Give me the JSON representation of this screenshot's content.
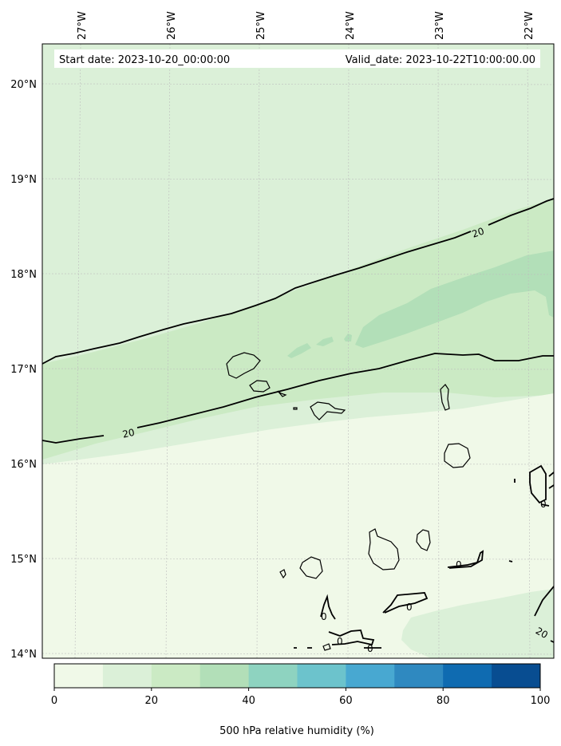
{
  "header": {
    "start_label": "Start date: 2023-10-20_00:00:00",
    "valid_label": "Valid_date: 2023-10-22T10:00:00.00"
  },
  "lon_ticks": [
    "27°W",
    "26°W",
    "25°W",
    "24°W",
    "23°W",
    "22°W"
  ],
  "lat_ticks": [
    "20°N",
    "19°N",
    "18°N",
    "17°N",
    "16°N",
    "15°N",
    "14°N"
  ],
  "contour_labels": [
    "20",
    "20",
    "20",
    "0",
    "0",
    "0",
    "0",
    "0",
    "0"
  ],
  "colorbar": {
    "label": "500 hPa relative humidity (%)",
    "ticks": [
      "0",
      "20",
      "40",
      "60",
      "80",
      "100"
    ],
    "colors": [
      "#f0f9e8",
      "#dbf0d8",
      "#cbeac4",
      "#b2dfb8",
      "#8ed3c0",
      "#6cc3cc",
      "#48a8d1",
      "#2f89c0",
      "#0f6bb1",
      "#084d91"
    ]
  },
  "chart_data": {
    "type": "heatmap",
    "variable": "500 hPa relative humidity (%)",
    "lon_range": [
      "27°W",
      "22°W"
    ],
    "lat_range": [
      "14°N",
      "20°N"
    ],
    "color_range": [
      0,
      100
    ],
    "levels": [
      0,
      10,
      20,
      30,
      40,
      50,
      60,
      70,
      80,
      90,
      100
    ],
    "contour_levels": [
      0,
      20
    ],
    "grid": true
  }
}
